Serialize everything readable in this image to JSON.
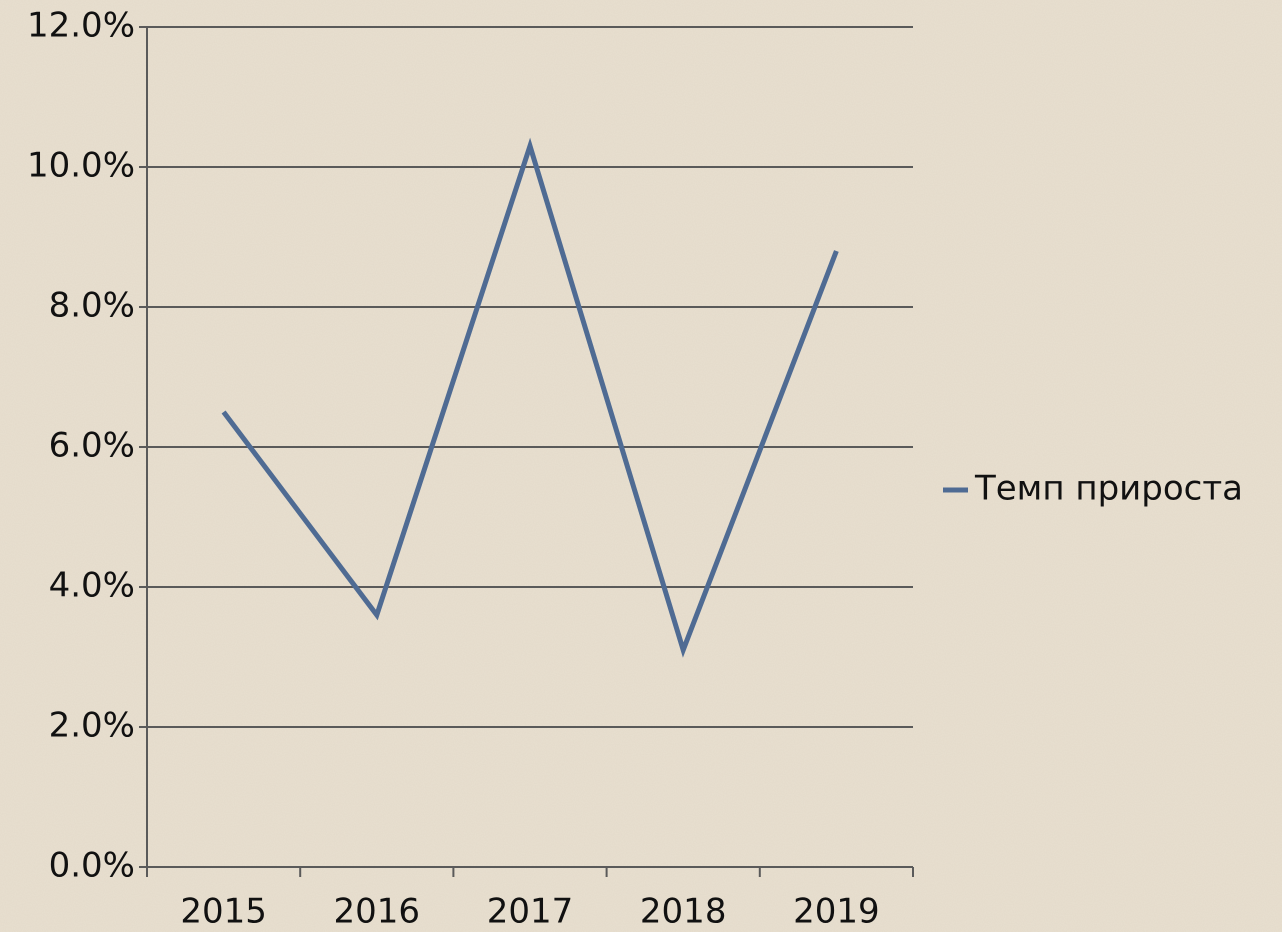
{
  "chart_data": {
    "type": "line",
    "categories": [
      "2015",
      "2016",
      "2017",
      "2018",
      "2019"
    ],
    "series": [
      {
        "name": "Темп прироста",
        "color": "#4f6b93",
        "values": [
          6.5,
          3.6,
          10.3,
          3.1,
          8.8
        ]
      }
    ],
    "ylim": [
      0,
      12
    ],
    "yticks": [
      {
        "value": 0,
        "label": "0.0%"
      },
      {
        "value": 2,
        "label": "2.0%"
      },
      {
        "value": 4,
        "label": "4.0%"
      },
      {
        "value": 6,
        "label": "6.0%"
      },
      {
        "value": 8,
        "label": "8.0%"
      },
      {
        "value": 10,
        "label": "10.0%"
      },
      {
        "value": 12,
        "label": "12.0%"
      }
    ],
    "grid": true,
    "legend": "right"
  }
}
